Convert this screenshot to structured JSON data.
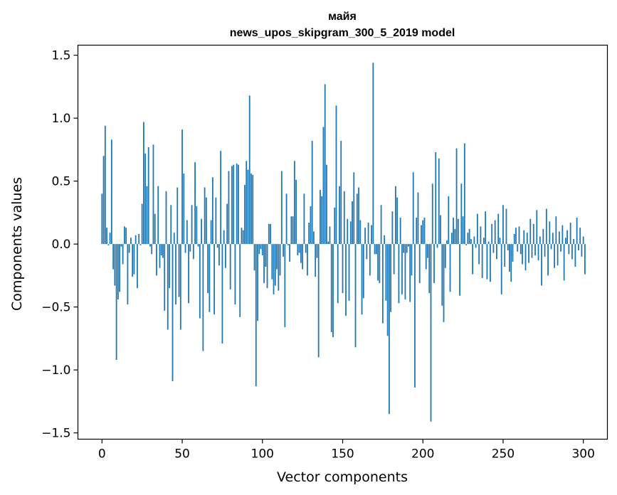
{
  "chart_data": {
    "type": "bar",
    "title_line1": "майя",
    "title_line2": "news_upos_skipgram_300_5_2019 model",
    "xlabel": "Vector components",
    "ylabel": "Components values",
    "xlim": [
      -15,
      315
    ],
    "ylim": [
      -1.55,
      1.58
    ],
    "xticks": [
      0,
      50,
      100,
      150,
      200,
      250,
      300
    ],
    "xtick_labels": [
      "0",
      "50",
      "100",
      "150",
      "200",
      "250",
      "300"
    ],
    "yticks": [
      -1.5,
      -1.0,
      -0.5,
      0.0,
      0.5,
      1.0,
      1.5
    ],
    "ytick_labels": [
      "−1.5",
      "−1.0",
      "−0.5",
      "0.0",
      "0.5",
      "1.0",
      "1.5"
    ],
    "bar_color": "#1f77b4",
    "values": [
      0.4,
      0.7,
      0.94,
      0.13,
      -0.01,
      0.09,
      0.83,
      -0.2,
      -0.33,
      -0.92,
      -0.44,
      -0.38,
      -0.02,
      -0.16,
      0.14,
      0.13,
      -0.48,
      -0.07,
      0.05,
      -0.26,
      -0.24,
      0.07,
      -0.35,
      0.08,
      -0.01,
      0.32,
      0.97,
      0.72,
      0.46,
      0.77,
      -0.02,
      -0.08,
      0.79,
      0.24,
      -0.25,
      0.46,
      -0.19,
      -0.09,
      -0.11,
      -0.53,
      0.42,
      -0.68,
      -0.35,
      0.31,
      -1.09,
      0.09,
      -0.48,
      0.45,
      -0.42,
      -0.68,
      0.91,
      0.56,
      -0.07,
      0.19,
      -0.47,
      -0.06,
      0.31,
      -0.12,
      0.65,
      0.3,
      -0.02,
      -0.59,
      0.2,
      -0.85,
      0.45,
      0.37,
      -0.39,
      -0.54,
      0.19,
      0.53,
      -0.56,
      0.37,
      -0.03,
      -0.17,
      0.74,
      -0.79,
      0.11,
      -0.19,
      0.32,
      0.58,
      -0.36,
      0.62,
      0.63,
      -0.48,
      0.64,
      0.63,
      -0.58,
      0.13,
      0.11,
      0.47,
      0.66,
      0.59,
      1.18,
      0.56,
      0.55,
      -0.21,
      -1.13,
      -0.61,
      -0.08,
      -0.04,
      -0.09,
      -0.31,
      -0.18,
      -0.35,
      0.16,
      0.16,
      -0.28,
      -0.4,
      -0.33,
      -0.2,
      -0.37,
      -0.25,
      0.58,
      -0.1,
      -0.66,
      0.4,
      -0.01,
      -0.14,
      0.22,
      0.22,
      0.66,
      0.51,
      -0.09,
      -0.07,
      -0.15,
      -0.2,
      0.4,
      -0.07,
      -0.25,
      0.17,
      0.3,
      0.82,
      0.1,
      -0.26,
      -0.11,
      -0.9,
      0.43,
      0.38,
      0.93,
      1.27,
      0.63,
      0.02,
      0.14,
      -0.7,
      -0.74,
      0.29,
      1.1,
      -0.47,
      0.46,
      0.82,
      -0.39,
      0.42,
      -0.57,
      0.2,
      -0.45,
      0.18,
      0.34,
      0.57,
      -0.82,
      0.4,
      0.45,
      0.19,
      -0.56,
      -0.43,
      0.13,
      -0.12,
      0.17,
      -0.25,
      0.15,
      1.44,
      -0.08,
      -0.08,
      -0.29,
      -0.31,
      0.31,
      -0.63,
      0.07,
      -0.45,
      -0.73,
      -1.35,
      -0.54,
      0.26,
      -0.24,
      0.46,
      0.37,
      -0.47,
      0.21,
      -0.4,
      -0.07,
      -0.44,
      -0.07,
      -0.02,
      -0.46,
      -0.25,
      0.57,
      -1.14,
      0.21,
      0.41,
      -0.31,
      0.15,
      0.19,
      0.21,
      -0.2,
      -0.11,
      -0.39,
      -1.41,
      0.48,
      -0.31,
      0.73,
      -0.03,
      0.68,
      0.23,
      -0.49,
      -0.62,
      -0.19,
      0.03,
      0.38,
      -0.38,
      0.09,
      0.21,
      0.12,
      0.76,
      0.2,
      -0.41,
      0.48,
      0.22,
      0.8,
      -0.01,
      0.09,
      0.12,
      0.04,
      -0.24,
      0.06,
      -0.03,
      0.24,
      -0.16,
      0.14,
      -0.27,
      0.05,
      0.26,
      -0.28,
      0.02,
      -0.3,
      0.16,
      -0.07,
      0.19,
      -0.12,
      0.24,
      0.05,
      -0.4,
      0.31,
      -0.18,
      0.28,
      -0.05,
      -0.22,
      -0.3,
      -0.14,
      0.08,
      0.13,
      -0.06,
      0.14,
      -0.08,
      -0.16,
      0.11,
      -0.21,
      0.09,
      -0.15,
      0.2,
      -0.11,
      0.16,
      -0.09,
      0.27,
      -0.13,
      0.06,
      -0.33,
      0.12,
      -0.1,
      0.28,
      -0.25,
      0.18,
      -0.04,
      0.09,
      -0.19,
      0.22,
      -0.17,
      0.1,
      -0.06,
      0.15,
      -0.29,
      0.05,
      0.11,
      -0.08,
      0.17,
      -0.12,
      0.04,
      -0.18,
      0.21,
      -0.05,
      0.13,
      -0.1,
      0.06,
      -0.24
    ]
  }
}
